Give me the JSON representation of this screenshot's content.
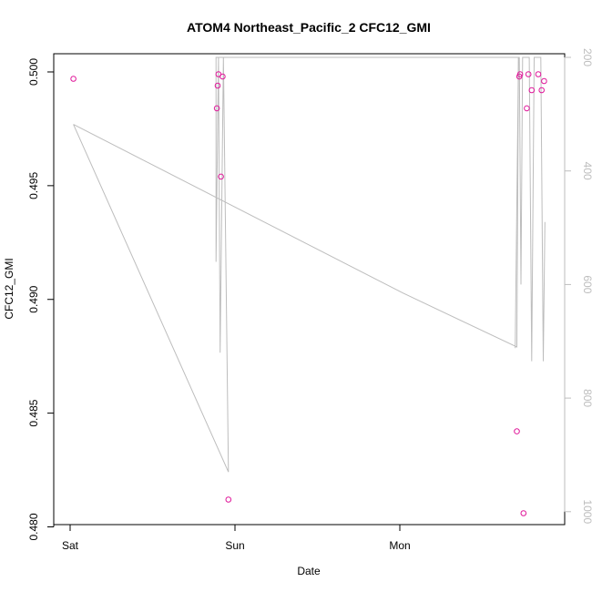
{
  "chart_data": {
    "type": "scatter",
    "title": "ATOM4 Northeast_Pacific_2 CFC12_GMI",
    "xlabel": "Date",
    "ylabel": "CFC12_GMI",
    "x_ticks": [
      "Sat",
      "Sun",
      "Mon"
    ],
    "y_ticks": [
      "0.480",
      "0.485",
      "0.490",
      "0.495",
      "0.500"
    ],
    "ylim": [
      0.4801,
      0.5008
    ],
    "secondary_y_ticks": [
      "200",
      "400",
      "600",
      "800",
      "1000"
    ],
    "secondary_ylim": [
      200,
      1030
    ],
    "colors": {
      "points": "#e0189a",
      "line": "#bdbdbd",
      "axis": "#000000",
      "secondary_axis": "#bdbdbd"
    },
    "points": [
      {
        "x": 0.02,
        "y": 0.4997
      },
      {
        "x": 0.89,
        "y": 0.4984
      },
      {
        "x": 0.895,
        "y": 0.4994
      },
      {
        "x": 0.9,
        "y": 0.4999
      },
      {
        "x": 0.915,
        "y": 0.4954
      },
      {
        "x": 0.925,
        "y": 0.4998
      },
      {
        "x": 0.96,
        "y": 0.4812
      },
      {
        "x": 2.71,
        "y": 0.4842
      },
      {
        "x": 2.725,
        "y": 0.4998
      },
      {
        "x": 2.73,
        "y": 0.4999
      },
      {
        "x": 2.75,
        "y": 0.4806
      },
      {
        "x": 2.77,
        "y": 0.4984
      },
      {
        "x": 2.78,
        "y": 0.4999
      },
      {
        "x": 2.8,
        "y": 0.4992
      },
      {
        "x": 2.84,
        "y": 0.4999
      },
      {
        "x": 2.86,
        "y": 0.4992
      },
      {
        "x": 2.875,
        "y": 0.4996
      }
    ],
    "secondary_series": [
      {
        "x": 0.02,
        "y": 318
      },
      {
        "x": 0.96,
        "y": 930
      },
      {
        "x": 0.93,
        "y": 200
      },
      {
        "x": 0.91,
        "y": 720
      },
      {
        "x": 0.9,
        "y": 200
      },
      {
        "x": 0.885,
        "y": 560
      },
      {
        "x": 0.885,
        "y": 200
      },
      {
        "x": 0.89,
        "y": 200
      },
      {
        "x": 2.7,
        "y": 200
      },
      {
        "x": 2.72,
        "y": 200
      },
      {
        "x": 2.71,
        "y": 710
      },
      {
        "x": 2.02,
        "y": 615
      },
      {
        "x": 0.02,
        "y": 318
      }
    ],
    "secondary_series_extra": [
      {
        "x": 2.7,
        "y": 712
      },
      {
        "x": 2.72,
        "y": 200
      },
      {
        "x": 2.725,
        "y": 200
      },
      {
        "x": 2.735,
        "y": 600
      },
      {
        "x": 2.745,
        "y": 200
      },
      {
        "x": 2.76,
        "y": 200
      },
      {
        "x": 2.785,
        "y": 200
      },
      {
        "x": 2.8,
        "y": 735
      },
      {
        "x": 2.815,
        "y": 200
      },
      {
        "x": 2.84,
        "y": 200
      },
      {
        "x": 2.855,
        "y": 200
      },
      {
        "x": 2.87,
        "y": 735
      },
      {
        "x": 2.88,
        "y": 490
      }
    ]
  }
}
